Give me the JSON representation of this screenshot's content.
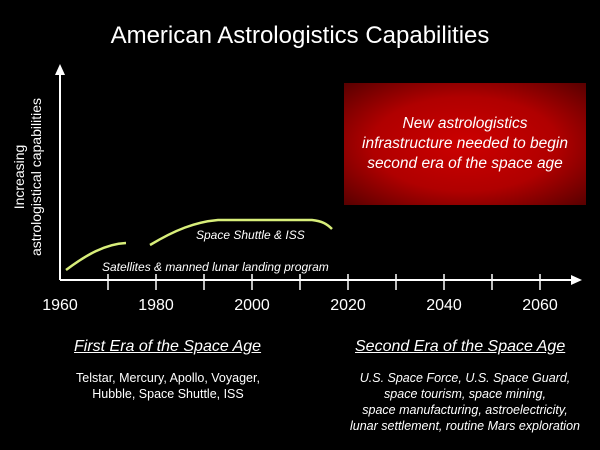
{
  "title": "American Astrologistics Capabilities",
  "y_axis_label_lines": [
    "Increasing",
    "astrologistical capabilities"
  ],
  "x_ticks": [
    "1960",
    "1980",
    "2000",
    "2020",
    "2040",
    "2060"
  ],
  "callout_lines": [
    "New astrologistics",
    "infrastructure needed to begin",
    "second era of the space age"
  ],
  "segment_labels": {
    "satellites": "Satellites & manned lunar landing program",
    "shuttle": "Space Shuttle & ISS"
  },
  "first_era": {
    "heading": "First Era of the Space Age",
    "lines": [
      "Telstar, Mercury, Apollo, Voyager,",
      "Hubble, Space Shuttle, ISS"
    ]
  },
  "second_era": {
    "heading": "Second Era of the Space Age",
    "lines": [
      "U.S. Space Force, U.S. Space Guard,",
      "space tourism, space mining,",
      "space manufacturing, astroelectricity,",
      "lunar settlement, routine Mars exploration"
    ]
  },
  "colors": {
    "background": "#000000",
    "curve": "#d8ee7a",
    "callout": "#b00000",
    "text": "#ffffff"
  }
}
